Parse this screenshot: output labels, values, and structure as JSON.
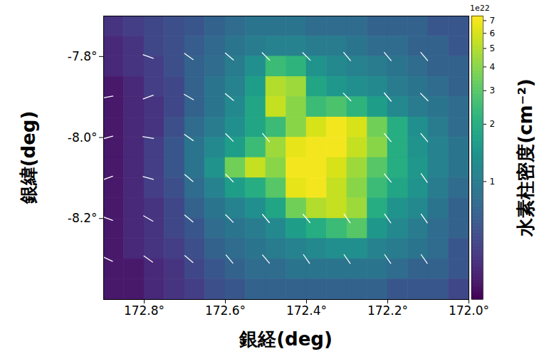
{
  "chart_data": {
    "type": "heatmap",
    "xlabel": "銀経(deg)",
    "ylabel": "銀緯(deg)",
    "xlim": [
      172.9,
      172.0
    ],
    "ylim": [
      -8.4,
      -7.7
    ],
    "xticks": [
      {
        "value": 172.8,
        "label": "172.8°"
      },
      {
        "value": 172.6,
        "label": "172.6°"
      },
      {
        "value": 172.4,
        "label": "172.4°"
      },
      {
        "value": 172.2,
        "label": "172.2°"
      },
      {
        "value": 172.0,
        "label": "172.0°"
      }
    ],
    "yticks": [
      {
        "value": -7.8,
        "label": "-7.8°"
      },
      {
        "value": -8.0,
        "label": "-8.0°"
      },
      {
        "value": -8.2,
        "label": "-8.2°"
      }
    ],
    "cells": {
      "x_edges": [
        172.9,
        172.85,
        172.8,
        172.75,
        172.7,
        172.65,
        172.6,
        172.55,
        172.5,
        172.45,
        172.4,
        172.35,
        172.3,
        172.25,
        172.2,
        172.15,
        172.1,
        172.05,
        172.0
      ],
      "y_edges": [
        -7.7,
        -7.75,
        -7.8,
        -7.85,
        -7.9,
        -7.95,
        -8.0,
        -8.05,
        -8.1,
        -8.15,
        -8.2,
        -8.25,
        -8.3,
        -8.35,
        -8.4
      ],
      "values": [
        [
          0.4,
          0.45,
          0.5,
          0.55,
          0.6,
          0.7,
          0.8,
          0.9,
          0.9,
          0.9,
          0.8,
          0.8,
          0.8,
          0.7,
          0.7,
          0.7,
          0.6,
          0.6
        ],
        [
          0.35,
          0.4,
          0.5,
          0.55,
          0.65,
          0.75,
          0.9,
          1.0,
          1.1,
          1.1,
          1.0,
          1.0,
          0.9,
          0.8,
          0.8,
          0.7,
          0.7,
          0.6
        ],
        [
          0.35,
          0.4,
          0.45,
          0.55,
          0.7,
          0.8,
          1.0,
          1.3,
          2.5,
          2.2,
          1.4,
          1.2,
          1.1,
          1.0,
          0.9,
          0.8,
          0.7,
          0.7
        ],
        [
          0.3,
          0.35,
          0.45,
          0.5,
          0.7,
          0.9,
          1.1,
          1.6,
          5.0,
          4.5,
          1.8,
          1.5,
          1.3,
          1.2,
          1.0,
          0.9,
          0.8,
          0.7
        ],
        [
          0.3,
          0.35,
          0.4,
          0.5,
          0.7,
          0.9,
          1.2,
          1.8,
          5.5,
          4.0,
          2.5,
          2.8,
          2.2,
          1.6,
          1.2,
          1.0,
          0.9,
          0.8
        ],
        [
          0.3,
          0.35,
          0.4,
          0.55,
          0.8,
          1.0,
          1.3,
          1.8,
          2.5,
          4.0,
          6.0,
          7.0,
          6.0,
          3.5,
          2.0,
          1.3,
          1.0,
          0.8
        ],
        [
          0.3,
          0.35,
          0.45,
          0.6,
          0.9,
          1.2,
          1.6,
          2.5,
          4.5,
          6.5,
          7.0,
          7.0,
          5.5,
          4.0,
          2.0,
          1.4,
          1.1,
          0.9
        ],
        [
          0.3,
          0.35,
          0.45,
          0.6,
          0.9,
          1.4,
          3.5,
          5.5,
          4.0,
          7.0,
          7.0,
          6.0,
          4.5,
          3.0,
          2.0,
          1.5,
          1.1,
          0.9
        ],
        [
          0.3,
          0.35,
          0.45,
          0.55,
          0.8,
          1.1,
          1.6,
          2.0,
          3.0,
          6.5,
          7.0,
          5.5,
          4.0,
          2.5,
          1.8,
          1.4,
          1.0,
          0.8
        ],
        [
          0.3,
          0.35,
          0.4,
          0.5,
          0.7,
          0.9,
          1.1,
          1.3,
          1.8,
          3.5,
          5.0,
          5.5,
          4.5,
          2.0,
          1.4,
          1.2,
          0.9,
          0.7
        ],
        [
          0.3,
          0.35,
          0.4,
          0.5,
          0.6,
          0.8,
          0.9,
          1.0,
          1.2,
          1.6,
          2.0,
          2.5,
          3.0,
          1.5,
          1.2,
          1.0,
          0.8,
          0.7
        ],
        [
          0.3,
          0.35,
          0.4,
          0.45,
          0.55,
          0.7,
          0.8,
          0.9,
          1.0,
          1.1,
          1.2,
          1.3,
          1.3,
          1.1,
          1.0,
          0.9,
          0.8,
          0.6
        ],
        [
          0.3,
          0.3,
          0.35,
          0.4,
          0.5,
          0.6,
          0.7,
          0.8,
          0.8,
          0.9,
          0.9,
          0.9,
          0.9,
          0.9,
          0.8,
          0.7,
          0.7,
          0.6
        ],
        [
          0.3,
          0.3,
          0.35,
          0.4,
          0.45,
          0.55,
          0.6,
          0.7,
          0.7,
          0.7,
          0.7,
          0.7,
          0.7,
          0.7,
          0.6,
          0.6,
          0.6,
          0.5
        ]
      ]
    },
    "colorbar": {
      "label": "水素柱密度(cm⁻²)",
      "range": [
        0.24,
        7.4
      ],
      "ticks": [
        1,
        2,
        3,
        4,
        5,
        6,
        7
      ],
      "log": true,
      "multiplier_label": "1e22",
      "color": "viridis"
    },
    "vectors": {
      "color": "white",
      "points": [
        {
          "l": 172.79,
          "b": -7.8,
          "angle": -70
        },
        {
          "l": 172.69,
          "b": -7.8,
          "angle": -55
        },
        {
          "l": 172.59,
          "b": -7.8,
          "angle": -50
        },
        {
          "l": 172.5,
          "b": -7.8,
          "angle": -45
        },
        {
          "l": 172.4,
          "b": -7.8,
          "angle": -45
        },
        {
          "l": 172.3,
          "b": -7.8,
          "angle": -40
        },
        {
          "l": 172.2,
          "b": -7.8,
          "angle": -40
        },
        {
          "l": 172.11,
          "b": -7.8,
          "angle": -40
        },
        {
          "l": 172.89,
          "b": -7.9,
          "angle": 80
        },
        {
          "l": 172.79,
          "b": -7.9,
          "angle": 70
        },
        {
          "l": 172.69,
          "b": -7.9,
          "angle": -60
        },
        {
          "l": 172.59,
          "b": -7.9,
          "angle": -50
        },
        {
          "l": 172.3,
          "b": -7.9,
          "angle": -45
        },
        {
          "l": 172.2,
          "b": -7.9,
          "angle": -40
        },
        {
          "l": 172.11,
          "b": -7.9,
          "angle": -45
        },
        {
          "l": 172.89,
          "b": -8.0,
          "angle": 75
        },
        {
          "l": 172.79,
          "b": -8.0,
          "angle": -80
        },
        {
          "l": 172.69,
          "b": -8.0,
          "angle": -55
        },
        {
          "l": 172.59,
          "b": -8.0,
          "angle": -45
        },
        {
          "l": 172.5,
          "b": -8.0,
          "angle": -40
        },
        {
          "l": 172.2,
          "b": -8.0,
          "angle": -40
        },
        {
          "l": 172.11,
          "b": -8.0,
          "angle": -40
        },
        {
          "l": 172.89,
          "b": -8.1,
          "angle": 70
        },
        {
          "l": 172.79,
          "b": -8.1,
          "angle": -75
        },
        {
          "l": 172.69,
          "b": -8.1,
          "angle": -50
        },
        {
          "l": 172.59,
          "b": -8.1,
          "angle": -45
        },
        {
          "l": 172.2,
          "b": -8.1,
          "angle": -40
        },
        {
          "l": 172.11,
          "b": -8.1,
          "angle": -35
        },
        {
          "l": 172.89,
          "b": -8.2,
          "angle": -70
        },
        {
          "l": 172.79,
          "b": -8.2,
          "angle": -60
        },
        {
          "l": 172.69,
          "b": -8.2,
          "angle": -50
        },
        {
          "l": 172.59,
          "b": -8.2,
          "angle": -45
        },
        {
          "l": 172.5,
          "b": -8.2,
          "angle": -40
        },
        {
          "l": 172.4,
          "b": -8.2,
          "angle": -40
        },
        {
          "l": 172.3,
          "b": -8.2,
          "angle": -35
        },
        {
          "l": 172.2,
          "b": -8.2,
          "angle": -35
        },
        {
          "l": 172.11,
          "b": -8.2,
          "angle": -35
        },
        {
          "l": 172.89,
          "b": -8.3,
          "angle": -65
        },
        {
          "l": 172.79,
          "b": -8.3,
          "angle": -55
        },
        {
          "l": 172.69,
          "b": -8.3,
          "angle": -50
        },
        {
          "l": 172.59,
          "b": -8.3,
          "angle": -40
        },
        {
          "l": 172.5,
          "b": -8.3,
          "angle": -40
        },
        {
          "l": 172.4,
          "b": -8.3,
          "angle": -35
        },
        {
          "l": 172.3,
          "b": -8.3,
          "angle": -35
        },
        {
          "l": 172.2,
          "b": -8.3,
          "angle": -35
        },
        {
          "l": 172.11,
          "b": -8.3,
          "angle": -35
        }
      ]
    }
  }
}
